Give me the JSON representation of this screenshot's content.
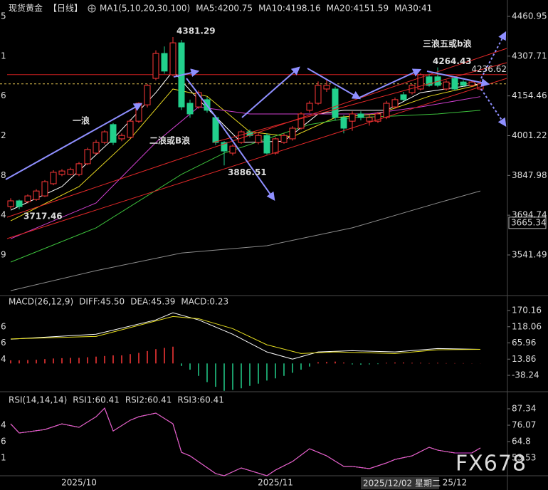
{
  "chart_data": [
    {
      "type": "candlestick",
      "title": "现货黄金",
      "period": "【日线】",
      "indicator": "MA1(5,10,20,30,100)",
      "categories": [
        null,
        null,
        null,
        null,
        null,
        null,
        null,
        null,
        "2025/10",
        null,
        null,
        null,
        null,
        null,
        null,
        null,
        null,
        null,
        null,
        null,
        null,
        null,
        null,
        null,
        null,
        null,
        null,
        null,
        null,
        null,
        null,
        "2025/11",
        null,
        null,
        null,
        null,
        null,
        null,
        null,
        null,
        null,
        null,
        null,
        null,
        null,
        null,
        null,
        null,
        null,
        null,
        null,
        null,
        "25/12",
        null,
        null,
        null
      ],
      "cursor_label": "2025/12/02 星期二",
      "watermark": "FX678",
      "up_color": "#ff3838",
      "down_color": "#22d08c",
      "open": [
        3728,
        3750,
        3747,
        3755,
        3769,
        3816,
        3852,
        3852,
        3852,
        3893,
        3934,
        3975,
        4044,
        3989,
        3995,
        4057,
        4120,
        4222,
        4318,
        4236,
        4359,
        4126,
        4112,
        4140,
        4071,
        3975,
        3934,
        3975,
        4016,
        3975,
        4002,
        3934,
        3975,
        3989,
        4030,
        4099,
        4126,
        4181,
        4181,
        4071,
        4057,
        4085,
        4057,
        4057,
        4071,
        4112,
        4159,
        4167,
        4181,
        4228,
        4228,
        4181,
        4222,
        4208,
        4195,
        4181
      ],
      "high": [
        3760,
        3755,
        3775,
        3795,
        3830,
        3868,
        3872,
        3878,
        3900,
        3955,
        3985,
        4022,
        4050,
        4010,
        4065,
        4130,
        4200,
        4330,
        4345,
        4381.29,
        4370,
        4140,
        4175,
        4150,
        4080,
        3980,
        3968,
        4022,
        4025,
        4010,
        4010,
        3995,
        4010,
        4038,
        4092,
        4135,
        4210,
        4215,
        4190,
        4080,
        4095,
        4095,
        4080,
        4092,
        4135,
        4148,
        4170,
        4200,
        4242,
        4240,
        4264.43,
        4215,
        4230,
        4215,
        4215,
        4215
      ],
      "low": [
        3720,
        3717.46,
        3740,
        3750,
        3765,
        3810,
        3845,
        3848,
        3845,
        3888,
        3928,
        3968,
        3965,
        3980,
        3990,
        4050,
        4110,
        4215,
        4240,
        4230,
        4100,
        4070,
        4105,
        4090,
        3965,
        3886.51,
        3925,
        3970,
        3995,
        3968,
        3928,
        3928,
        3970,
        3982,
        4025,
        4090,
        4120,
        4170,
        4060,
        4010,
        4020,
        4060,
        4040,
        4050,
        4065,
        4105,
        4135,
        4160,
        4175,
        4190,
        4188,
        4175,
        4175,
        4190,
        4188,
        4175
      ],
      "close": [
        3750,
        3728,
        3769,
        3788,
        3824,
        3860,
        3865,
        3871,
        3893,
        3948,
        3975,
        4016,
        3975,
        4002,
        4057,
        4126,
        4195,
        4318,
        4250,
        4359,
        4112,
        4085,
        4167,
        4099,
        3975,
        3942,
        3961,
        4016,
        4002,
        4002,
        3934,
        3989,
        4002,
        4030,
        4085,
        4126,
        4195,
        4195,
        4071,
        4030,
        4085,
        4071,
        4071,
        4085,
        4126,
        4140,
        4140,
        4195,
        4236,
        4195,
        4195,
        4208,
        4181,
        4195,
        4208,
        4200.75
      ],
      "series": [
        {
          "name": "MA5:4200.75",
          "color": "#ffffff",
          "x": [
            0,
            6,
            12,
            17,
            19,
            22,
            27,
            32,
            36,
            39,
            44,
            48,
            55
          ],
          "values": [
            3714,
            3805,
            3989,
            4167,
            4250,
            4140,
            3975,
            3980,
            4085,
            4099,
            4099,
            4167,
            4200.75
          ]
        },
        {
          "name": "MA10:4198.16",
          "color": "#e8d820",
          "x": [
            0,
            8,
            14,
            19,
            23,
            28,
            33,
            38,
            43,
            49,
            55
          ],
          "values": [
            3673,
            3805,
            3989,
            4181,
            4153,
            4016,
            3997,
            4071,
            4085,
            4153,
            4198.16
          ]
        },
        {
          "name": "MA20:4151.59",
          "color": "#d040d0",
          "x": [
            0,
            10,
            17,
            22,
            28,
            35,
            42,
            48,
            55
          ],
          "values": [
            3604,
            3742,
            3975,
            4112,
            4085,
            4085,
            4085,
            4112,
            4151.59
          ]
        },
        {
          "name": "MA30:41",
          "color": "#3cc03c",
          "x": [
            0,
            10,
            20,
            25,
            30,
            35,
            40,
            45,
            50,
            55
          ],
          "values": [
            3514,
            3646,
            3852,
            3934,
            3989,
            4044,
            4071,
            4077,
            4085,
            4099
          ]
        },
        {
          "color": "#8c8c8c",
          "x": [
            0,
            10,
            20,
            30,
            40,
            50,
            55
          ],
          "values": [
            3404,
            3481,
            3549,
            3577,
            3646,
            3742,
            3788
          ]
        }
      ],
      "annotations": [
        "一浪",
        "二浪或B浪",
        "三浪五或b浪"
      ],
      "line_label": 4236.62,
      "box_label": 3665.34,
      "ylim": [
        3385,
        4524
      ],
      "yticks": [
        4460.95,
        4307.71,
        4154.46,
        4001.22,
        3847.98,
        3694.74,
        3541.49
      ],
      "left_labels": [
        "5",
        "1",
        "6",
        "2",
        "8",
        "4",
        "9"
      ]
    },
    {
      "type": "macd",
      "title": "MACD(26,12,9)",
      "histogram": {
        "name": "MACD:0.23",
        "color": "#e040e0",
        "up_color": "#ff3838",
        "down_color": "#22d08c",
        "values": [
          10,
          10,
          11,
          12,
          14,
          16,
          17,
          18,
          18,
          20,
          22,
          24,
          26,
          26,
          30,
          34,
          40,
          46,
          50,
          54,
          -8,
          -20,
          -40,
          -60,
          -75,
          -88,
          -85,
          -80,
          -72,
          -65,
          -55,
          -48,
          -40,
          -30,
          -20,
          -10,
          4,
          5,
          6,
          3,
          -3,
          -4,
          -3,
          -2,
          2,
          3,
          3,
          2,
          2,
          1,
          2,
          1,
          1,
          1,
          0.5,
          0.23
        ]
      },
      "series": [
        {
          "name": "DIFF:45.50",
          "color": "#ffffff",
          "x": [
            0,
            10,
            17,
            19,
            22,
            26,
            30,
            33,
            36,
            40,
            45,
            50,
            55
          ],
          "values": [
            78,
            94,
            140,
            163,
            140,
            94,
            37,
            14,
            37,
            41,
            37,
            48,
            45.5
          ]
        },
        {
          "name": "DEA:45.39",
          "color": "#e8e020",
          "x": [
            0,
            10,
            19,
            22,
            26,
            30,
            34,
            38,
            45,
            50,
            55
          ],
          "values": [
            79,
            87,
            151,
            144,
            112,
            60,
            32,
            37,
            32,
            44,
            45.39
          ]
        }
      ],
      "ylim": [
        -90.9,
        218.3
      ],
      "yticks": [
        170.16,
        118.06,
        65.96,
        13.86,
        -38.24
      ],
      "left_labels": [
        null,
        "6",
        "6",
        "4",
        null
      ]
    },
    {
      "type": "line",
      "title": "RSI(14,14,14)",
      "series": [
        {
          "name": "RSI1:60.41",
          "color": "#ffffff",
          "x": [
            0,
            1,
            4,
            6,
            8,
            10,
            11,
            12,
            14,
            15,
            17,
            19,
            20,
            21,
            24,
            25,
            27,
            30,
            31,
            33,
            35,
            37,
            39,
            40,
            42,
            44,
            45,
            47,
            49,
            50,
            52,
            54,
            55
          ],
          "values": [
            77.0,
            70.7,
            73.1,
            77.0,
            74.6,
            81.9,
            87.8,
            72.1,
            79.5,
            81.9,
            84.4,
            77.0,
            57.4,
            55.0,
            42.8,
            41.3,
            46.7,
            41.3,
            45.2,
            51.1,
            59.9,
            55.0,
            47.7,
            47.7,
            46.2,
            50.1,
            52.5,
            55.0,
            60.9,
            58.9,
            57.0,
            57.0,
            60.41
          ]
        },
        {
          "name": "RSI2:60.41",
          "color": "#e8e020",
          "x": [
            0,
            1,
            4,
            6,
            8,
            10,
            11,
            12,
            14,
            15,
            17,
            19,
            20,
            21,
            24,
            25,
            27,
            30,
            31,
            33,
            35,
            37,
            39,
            40,
            42,
            44,
            45,
            47,
            49,
            50,
            52,
            54,
            55
          ],
          "values": [
            77.0,
            70.7,
            73.1,
            77.0,
            74.6,
            81.9,
            87.8,
            72.1,
            79.5,
            81.9,
            84.4,
            77.0,
            57.4,
            55.0,
            42.8,
            41.3,
            46.7,
            41.3,
            45.2,
            51.1,
            59.9,
            55.0,
            47.7,
            47.7,
            46.2,
            50.1,
            52.5,
            55.0,
            60.9,
            58.9,
            57.0,
            57.0,
            60.41
          ]
        },
        {
          "name": "RSI3:60.41",
          "color": "#e040e0",
          "x": [
            0,
            1,
            4,
            6,
            8,
            10,
            11,
            12,
            14,
            15,
            17,
            19,
            20,
            21,
            24,
            25,
            27,
            30,
            31,
            33,
            35,
            37,
            39,
            40,
            42,
            44,
            45,
            47,
            49,
            50,
            52,
            54,
            55
          ],
          "values": [
            77.0,
            70.7,
            73.1,
            77.0,
            74.6,
            81.9,
            87.8,
            72.1,
            79.5,
            81.9,
            84.4,
            77.0,
            57.4,
            55.0,
            42.8,
            41.3,
            46.7,
            41.3,
            45.2,
            51.1,
            59.9,
            55.0,
            47.7,
            47.7,
            46.2,
            50.1,
            52.5,
            55.0,
            60.9,
            58.9,
            57.0,
            57.0,
            60.41
          ]
        }
      ],
      "ylim": [
        41.3,
        99.1
      ],
      "yticks": [
        87.34,
        76.07,
        64.8,
        53.53
      ],
      "left_labels": [
        null,
        "4",
        "6",
        "1"
      ]
    }
  ]
}
